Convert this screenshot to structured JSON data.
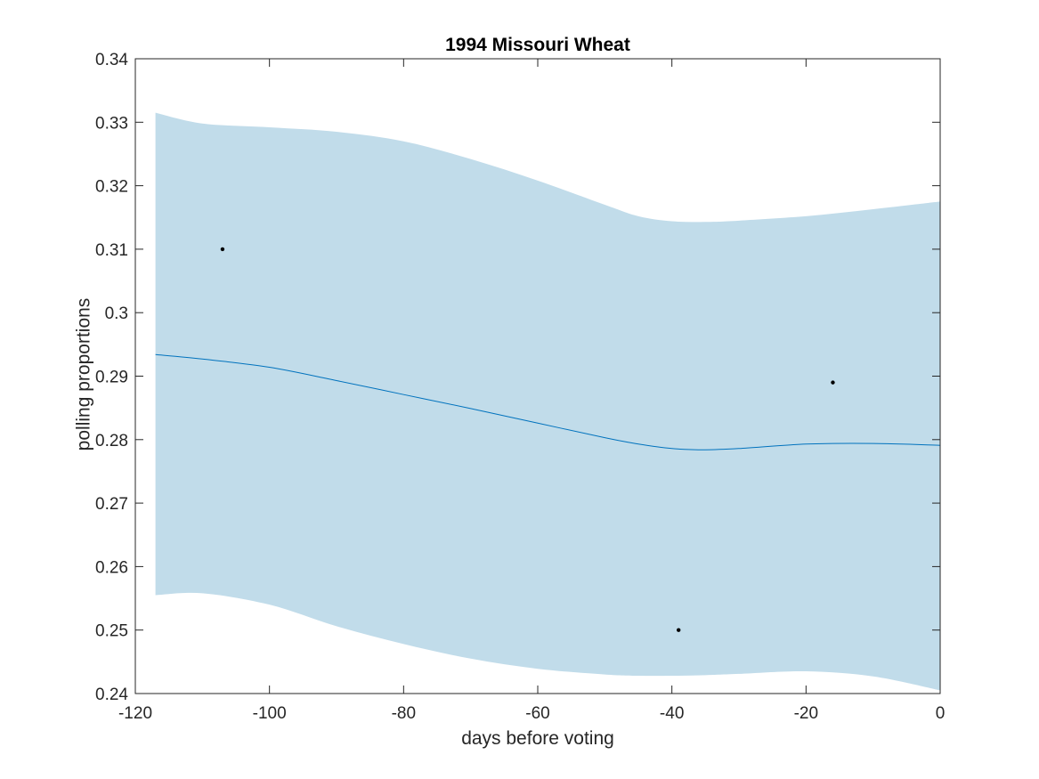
{
  "chart_data": {
    "type": "line",
    "title": "1994 Missouri Wheat",
    "xlabel": "days before voting",
    "ylabel": "polling proportions",
    "xlim": [
      -120,
      0
    ],
    "ylim": [
      0.24,
      0.34
    ],
    "xticks": [
      -120,
      -100,
      -80,
      -60,
      -40,
      -20,
      0
    ],
    "xtick_labels": [
      "-120",
      "-100",
      "-80",
      "-60",
      "-40",
      "-20",
      "0"
    ],
    "yticks": [
      0.24,
      0.25,
      0.26,
      0.27,
      0.28,
      0.29,
      0.3,
      0.31,
      0.32,
      0.33,
      0.34
    ],
    "ytick_labels": [
      "0.24",
      "0.25",
      "0.26",
      "0.27",
      "0.28",
      "0.29",
      "0.3",
      "0.31",
      "0.32",
      "0.33",
      "0.34"
    ],
    "grid": false,
    "colors": {
      "band": "#c1dcea",
      "line": "#0072bd",
      "points": "#000000",
      "axes": "#262626"
    },
    "mean_line": {
      "x": [
        -117,
        -110,
        -100,
        -90,
        -80,
        -70,
        -60,
        -50,
        -45,
        -40,
        -35,
        -30,
        -20,
        -10,
        0
      ],
      "y": [
        0.2934,
        0.2927,
        0.2914,
        0.2893,
        0.2871,
        0.2849,
        0.2826,
        0.2803,
        0.2793,
        0.2786,
        0.2784,
        0.2786,
        0.2793,
        0.2794,
        0.2791
      ]
    },
    "band": {
      "x": [
        -117,
        -110,
        -100,
        -90,
        -80,
        -70,
        -60,
        -50,
        -45,
        -40,
        -35,
        -30,
        -20,
        -10,
        0
      ],
      "upper": [
        0.3315,
        0.3298,
        0.3292,
        0.3285,
        0.327,
        0.3242,
        0.3208,
        0.317,
        0.3152,
        0.3144,
        0.3143,
        0.3145,
        0.3152,
        0.3163,
        0.3175
      ],
      "lower": [
        0.2555,
        0.2558,
        0.254,
        0.2506,
        0.2478,
        0.2455,
        0.2439,
        0.243,
        0.2428,
        0.2428,
        0.2429,
        0.2431,
        0.2435,
        0.2427,
        0.2405
      ]
    },
    "points": {
      "x": [
        -107,
        -39,
        -16
      ],
      "y": [
        0.31,
        0.25,
        0.289
      ]
    }
  }
}
